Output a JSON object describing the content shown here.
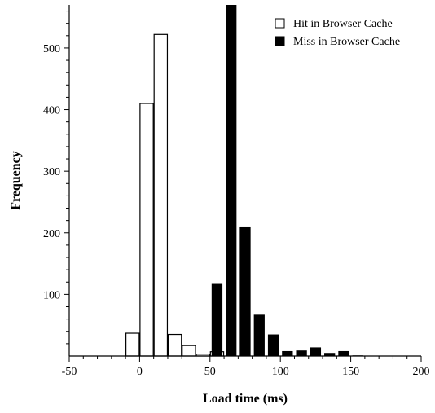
{
  "chart_data": {
    "type": "bar",
    "title": "",
    "xlabel": "Load time (ms)",
    "ylabel": "Frequency",
    "xlim": [
      -50,
      200
    ],
    "ylim": [
      0,
      570
    ],
    "bin_width": 10,
    "x_ticks": [
      -50,
      0,
      50,
      100,
      150,
      200
    ],
    "x_tick_labels": [
      "-50",
      "0",
      "50",
      "100",
      "150",
      "200"
    ],
    "y_ticks": [
      100,
      200,
      300,
      400,
      500
    ],
    "y_tick_labels": [
      "100",
      "200",
      "300",
      "400",
      "500"
    ],
    "grid": false,
    "legend_position": "top-right",
    "series": [
      {
        "name": "Hit in Browser Cache",
        "style": "hollow",
        "color": "#000000",
        "x": [
          -5,
          5,
          15,
          25,
          35,
          45,
          55
        ],
        "values": [
          37,
          410,
          522,
          35,
          17,
          3,
          7
        ]
      },
      {
        "name": "Miss in Browser Cache",
        "style": "filled",
        "color": "#000000",
        "x": [
          55,
          65,
          75,
          85,
          95,
          105,
          115,
          125,
          135,
          145,
          155
        ],
        "values": [
          117,
          570,
          209,
          67,
          35,
          8,
          9,
          14,
          5,
          8,
          1
        ]
      }
    ]
  }
}
